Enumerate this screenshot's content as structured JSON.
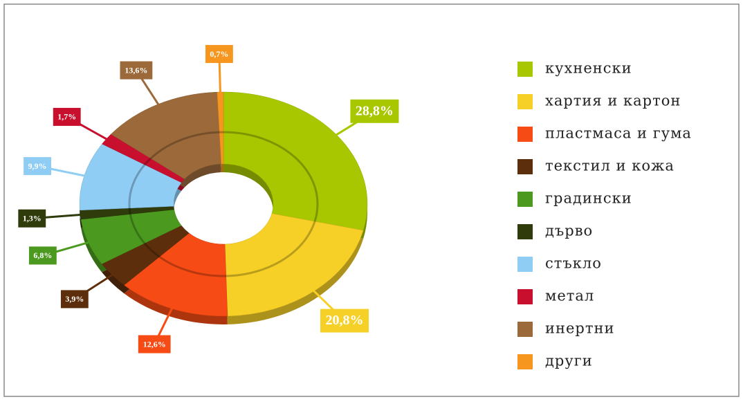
{
  "chart_data": {
    "type": "pie",
    "donut": true,
    "categories": [
      "кухненски",
      "хартия и картон",
      "пластмаса и гума",
      "текстил и кожа",
      "градински",
      "дърво",
      "стъкло",
      "метал",
      "инертни",
      "други"
    ],
    "values": [
      28.8,
      20.8,
      12.6,
      3.9,
      6.8,
      1.3,
      9.9,
      1.7,
      13.6,
      0.7
    ],
    "value_labels": [
      "28,8%",
      "20,8%",
      "12,6%",
      "3,9%",
      "6,8%",
      "1,3%",
      "9,9%",
      "1,7%",
      "13,6%",
      "0,7%"
    ],
    "colors": [
      "#a8c700",
      "#f6d026",
      "#f64b14",
      "#5c2e0b",
      "#4b9a1f",
      "#2f3b0b",
      "#8fcdf4",
      "#c8102e",
      "#9c6a3a",
      "#f6961e"
    ],
    "legend": "right"
  }
}
